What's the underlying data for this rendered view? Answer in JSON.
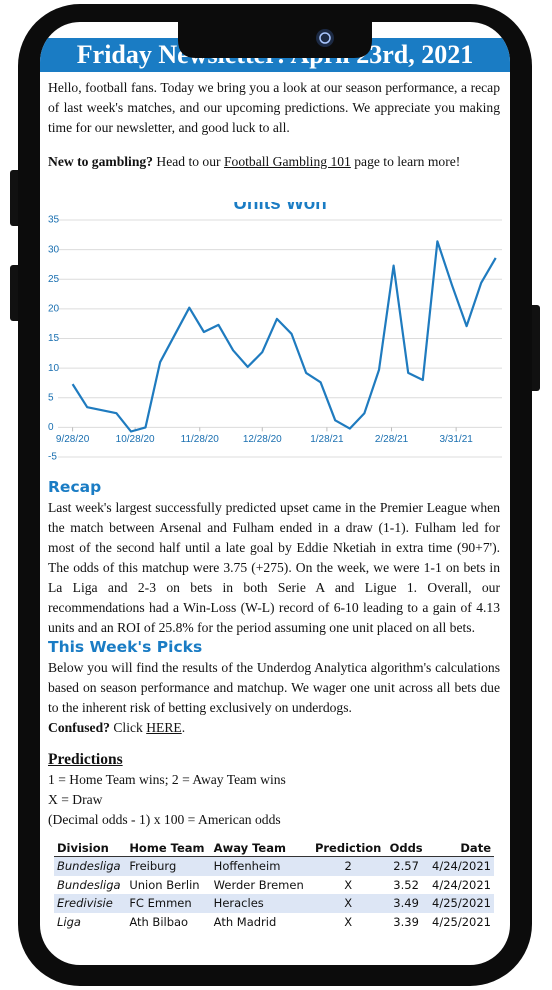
{
  "header": {
    "title": "Friday Newsletter: April 23rd, 2021"
  },
  "intro": {
    "text": "Hello, football fans. Today we bring you a look at our season performance, a recap of last week's matches,  and our upcoming predictions. We appreciate you making time for our newsletter, and good luck to all.",
    "cta_bold": "New to gambling?",
    "cta_before": " Head to our ",
    "cta_link": "Football Gambling 101",
    "cta_after": " page to learn more!"
  },
  "chart_data": {
    "type": "line",
    "title": "Units Won",
    "x": [
      "9/28/20",
      "10/5/20",
      "10/19/20",
      "10/26/20",
      "11/2/20",
      "11/9/20",
      "11/23/20",
      "11/30/20",
      "12/7/20",
      "12/14/20",
      "12/21/20",
      "12/28/20",
      "1/4/21",
      "1/11/21",
      "1/18/21",
      "1/25/21",
      "2/1/21",
      "2/8/21",
      "2/15/21",
      "2/22/21",
      "3/1/21",
      "3/8/21",
      "3/15/21",
      "3/22/21",
      "3/29/21",
      "4/5/21",
      "4/12/21",
      "4/19/21"
    ],
    "series": [
      {
        "name": "Units Won",
        "color": "#1f7bbf",
        "values": [
          7.3,
          3.4,
          2.4,
          -0.7,
          0,
          11,
          20.2,
          16.1,
          17.3,
          13,
          10.2,
          12.7,
          18.3,
          15.8,
          9.2,
          7.6,
          1.2,
          -0.2,
          2.4,
          9.7,
          27.3,
          9.2,
          8,
          31.4,
          24,
          17.1,
          24.4,
          28.6
        ]
      }
    ],
    "xlim": [
      "9/21/20",
      "4/22/21"
    ],
    "xticks": [
      "9/28/20",
      "10/28/20",
      "11/28/20",
      "12/28/20",
      "1/28/21",
      "2/28/21",
      "3/31/21"
    ],
    "ylim": [
      -5,
      35
    ],
    "yticks": [
      -5,
      0,
      5,
      10,
      15,
      20,
      25,
      30,
      35
    ],
    "grid": true
  },
  "recap": {
    "heading": "Recap",
    "text": "Last week's largest successfully predicted upset came in the Premier League when the match between Arsenal and Fulham ended in a draw (1-1). Fulham led for most of the second half until a late goal by Eddie Nketiah in extra time (90+7'). The odds of this matchup were 3.75 (+275). On the week, we were 1-1 on bets in La Liga and 2-3 on bets in both Serie A and Ligue 1. Overall, our recommendations had a Win-Loss (W-L) record of 6-10 leading to a gain of 4.13 units and an ROI of 25.8% for the period assuming one unit placed on all bets."
  },
  "picks": {
    "heading": "This Week's Picks",
    "text": "Below you will find the results of the Underdog Analytica algorithm's calculations based on season performance and matchup. We wager one unit across all bets due to the inherent risk of betting exclusively on underdogs.",
    "confused_bold": "Confused?",
    "click": " Click ",
    "link": "HERE",
    "end": "."
  },
  "predictions": {
    "heading": "Predictions",
    "lines": [
      "1 = Home Team wins; 2 = Away Team wins",
      "X = Draw",
      "(Decimal odds - 1) x 100 = American odds"
    ]
  },
  "table": {
    "columns": [
      "Division",
      "Home Team",
      "Away Team",
      "Prediction",
      "Odds",
      "Date"
    ],
    "rows": [
      [
        "Bundesliga",
        "Freiburg",
        "Hoffenheim",
        "2",
        "2.57",
        "4/24/2021"
      ],
      [
        "Bundesliga",
        "Union Berlin",
        "Werder Bremen",
        "X",
        "3.52",
        "4/24/2021"
      ],
      [
        "Eredivisie",
        "FC Emmen",
        "Heracles",
        "X",
        "3.49",
        "4/25/2021"
      ],
      [
        "Liga",
        "Ath Bilbao",
        "Ath Madrid",
        "X",
        "3.39",
        "4/25/2021"
      ]
    ]
  }
}
